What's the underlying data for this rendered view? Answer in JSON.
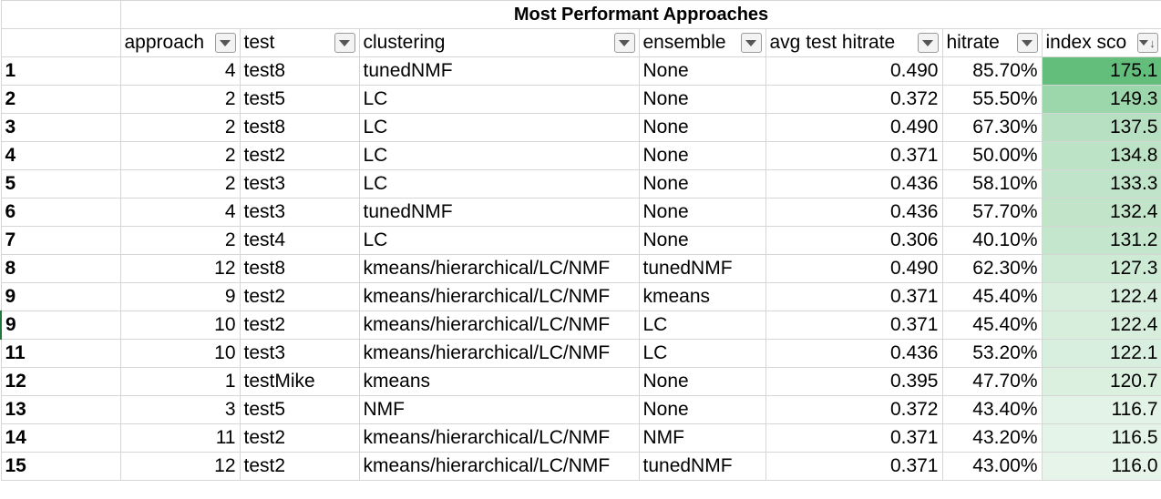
{
  "title": "Most Performant Approaches",
  "headers": [
    {
      "label": "approach",
      "name": "header-approach"
    },
    {
      "label": "test",
      "name": "header-test"
    },
    {
      "label": "clustering",
      "name": "header-clustering"
    },
    {
      "label": "ensemble",
      "name": "header-ensemble"
    },
    {
      "label": "avg test hitrate",
      "name": "header-avg-test-hitrate"
    },
    {
      "label": "hitrate",
      "name": "header-hitrate"
    },
    {
      "label": "index sco",
      "name": "header-index-score"
    }
  ],
  "rows": [
    {
      "rank": "1",
      "approach": "4",
      "test": "test8",
      "clustering": "tunedNMF",
      "ensemble": "None",
      "avg": "0.490",
      "hitrate": "85.70%",
      "index": "175.1",
      "index_value": 175.1
    },
    {
      "rank": "2",
      "approach": "2",
      "test": "test5",
      "clustering": "LC",
      "ensemble": "None",
      "avg": "0.372",
      "hitrate": "55.50%",
      "index": "149.3",
      "index_value": 149.3
    },
    {
      "rank": "3",
      "approach": "2",
      "test": "test8",
      "clustering": "LC",
      "ensemble": "None",
      "avg": "0.490",
      "hitrate": "67.30%",
      "index": "137.5",
      "index_value": 137.5
    },
    {
      "rank": "4",
      "approach": "2",
      "test": "test2",
      "clustering": "LC",
      "ensemble": "None",
      "avg": "0.371",
      "hitrate": "50.00%",
      "index": "134.8",
      "index_value": 134.8
    },
    {
      "rank": "5",
      "approach": "2",
      "test": "test3",
      "clustering": "LC",
      "ensemble": "None",
      "avg": "0.436",
      "hitrate": "58.10%",
      "index": "133.3",
      "index_value": 133.3
    },
    {
      "rank": "6",
      "approach": "4",
      "test": "test3",
      "clustering": "tunedNMF",
      "ensemble": "None",
      "avg": "0.436",
      "hitrate": "57.70%",
      "index": "132.4",
      "index_value": 132.4
    },
    {
      "rank": "7",
      "approach": "2",
      "test": "test4",
      "clustering": "LC",
      "ensemble": "None",
      "avg": "0.306",
      "hitrate": "40.10%",
      "index": "131.2",
      "index_value": 131.2
    },
    {
      "rank": "8",
      "approach": "12",
      "test": "test8",
      "clustering": "kmeans/hierarchical/LC/NMF",
      "ensemble": "tunedNMF",
      "avg": "0.490",
      "hitrate": "62.30%",
      "index": "127.3",
      "index_value": 127.3
    },
    {
      "rank": "9",
      "approach": "9",
      "test": "test2",
      "clustering": "kmeans/hierarchical/LC/NMF",
      "ensemble": "kmeans",
      "avg": "0.371",
      "hitrate": "45.40%",
      "index": "122.4",
      "index_value": 122.4
    },
    {
      "rank": "9",
      "approach": "10",
      "test": "test2",
      "clustering": "kmeans/hierarchical/LC/NMF",
      "ensemble": "LC",
      "avg": "0.371",
      "hitrate": "45.40%",
      "index": "122.4",
      "index_value": 122.4
    },
    {
      "rank": "11",
      "approach": "10",
      "test": "test3",
      "clustering": "kmeans/hierarchical/LC/NMF",
      "ensemble": "LC",
      "avg": "0.436",
      "hitrate": "53.20%",
      "index": "122.1",
      "index_value": 122.1
    },
    {
      "rank": "12",
      "approach": "1",
      "test": "testMike",
      "clustering": "kmeans",
      "ensemble": "None",
      "avg": "0.395",
      "hitrate": "47.70%",
      "index": "120.7",
      "index_value": 120.7
    },
    {
      "rank": "13",
      "approach": "3",
      "test": "test5",
      "clustering": "NMF",
      "ensemble": "None",
      "avg": "0.372",
      "hitrate": "43.40%",
      "index": "116.7",
      "index_value": 116.7
    },
    {
      "rank": "14",
      "approach": "11",
      "test": "test2",
      "clustering": "kmeans/hierarchical/LC/NMF",
      "ensemble": "NMF",
      "avg": "0.371",
      "hitrate": "43.20%",
      "index": "116.5",
      "index_value": 116.5
    },
    {
      "rank": "15",
      "approach": "12",
      "test": "test2",
      "clustering": "kmeans/hierarchical/LC/NMF",
      "ensemble": "tunedNMF",
      "avg": "0.371",
      "hitrate": "43.00%",
      "index": "116.0",
      "index_value": 116.0
    }
  ],
  "colors": {
    "scale_high": "#63be7b",
    "scale_low": "#e6f4e9",
    "grid": "#d6d6d6",
    "filter_button": "#f3f3f3"
  },
  "icons": {
    "filter": "dropdown-triangle",
    "sort": "sort-descending-arrow"
  }
}
